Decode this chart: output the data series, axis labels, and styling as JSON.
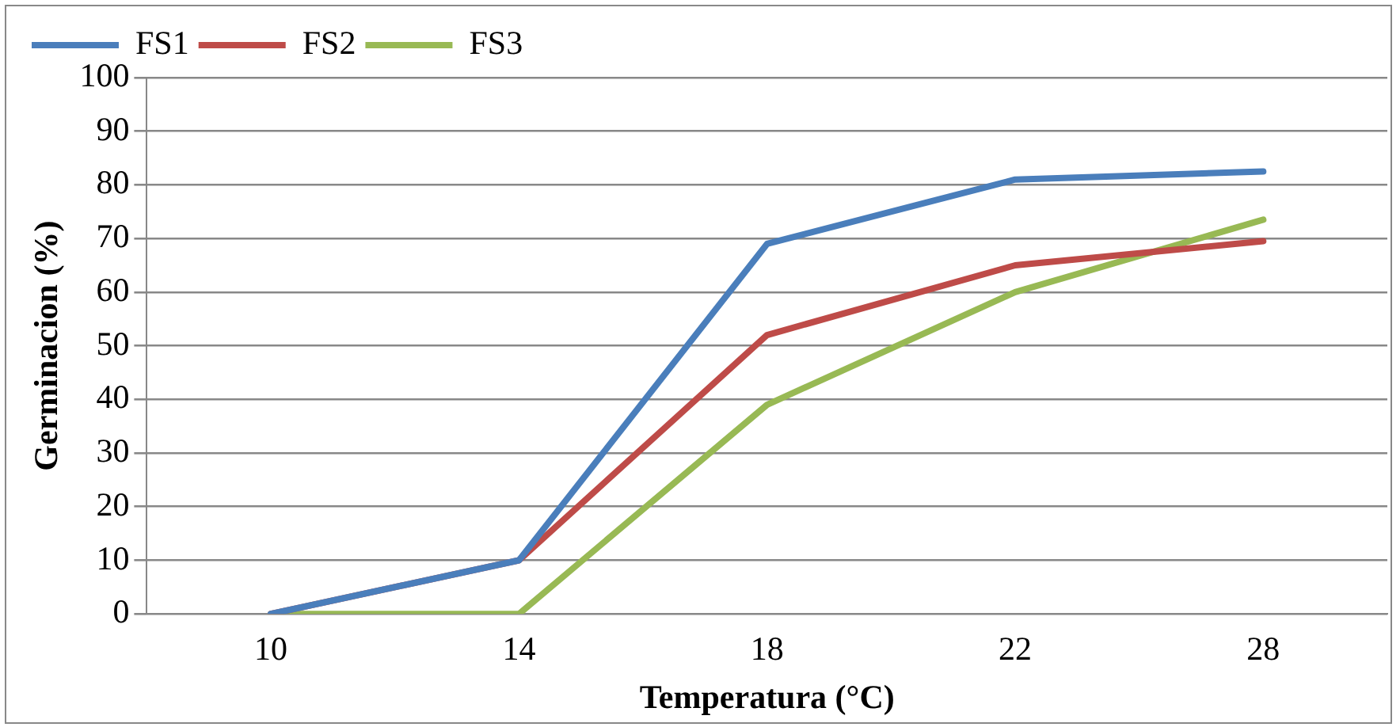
{
  "chart_data": {
    "type": "line",
    "xlabel": "Temperatura (°C)",
    "ylabel": "Germinacion (%)",
    "categories": [
      "10",
      "14",
      "18",
      "22",
      "28"
    ],
    "series": [
      {
        "name": "FS1",
        "color": "#4a7ebb",
        "values": [
          0,
          10,
          69,
          81,
          82.5
        ]
      },
      {
        "name": "FS2",
        "color": "#be4b48",
        "values": [
          0,
          10,
          52,
          65,
          69.5
        ]
      },
      {
        "name": "FS3",
        "color": "#98b954",
        "values": [
          0,
          0,
          39,
          60,
          73.5
        ]
      }
    ],
    "ylim": [
      0,
      100
    ],
    "yticks": [
      0,
      10,
      20,
      30,
      40,
      50,
      60,
      70,
      80,
      90,
      100
    ],
    "grid": "y",
    "legend": "top left",
    "marker": "none",
    "line_style": "solid"
  }
}
